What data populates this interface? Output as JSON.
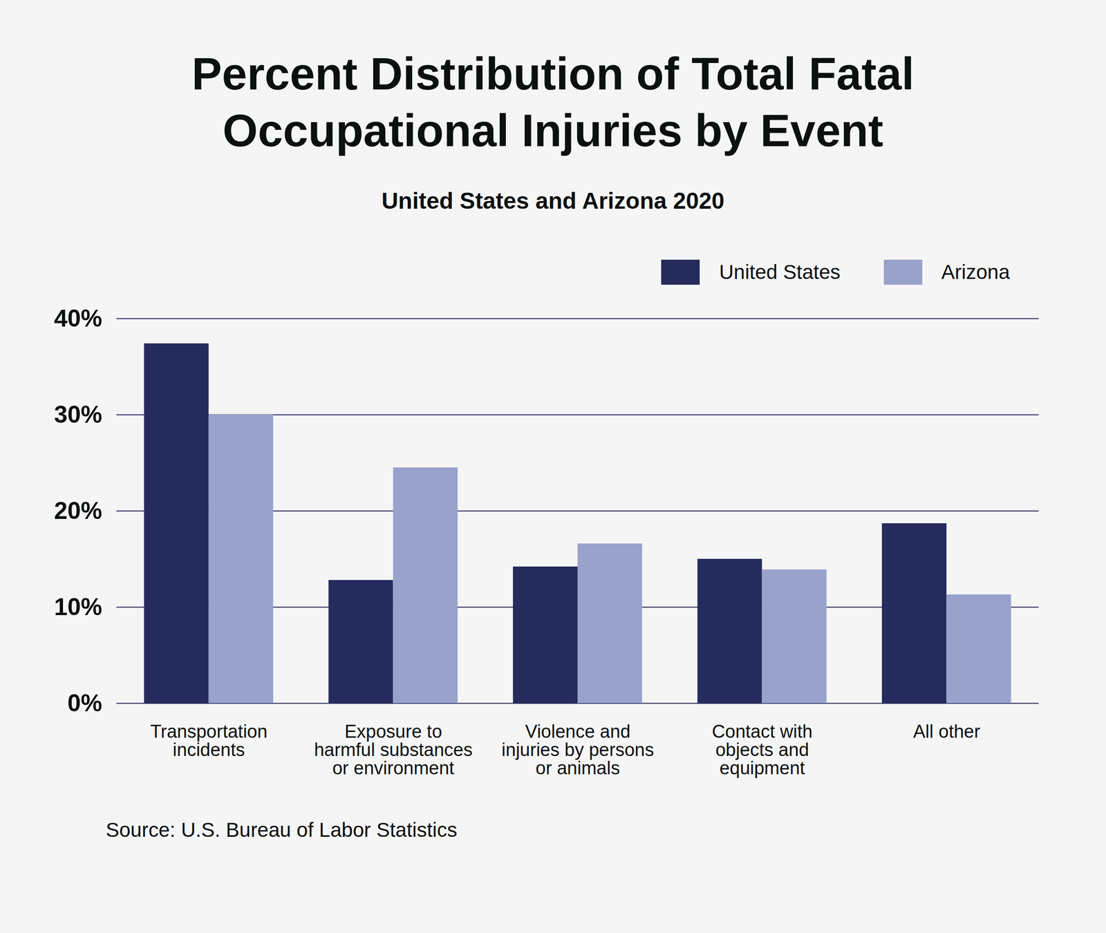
{
  "chart_data": {
    "type": "bar",
    "title": "Percent Distribution of Total Fatal Occupational Injuries by Event",
    "subtitle": "United States and Arizona 2020",
    "categories": [
      "Transportation incidents",
      "Exposure to harmful substances or environment",
      "Violence and injuries by persons or animals",
      "Contact with objects and equipment",
      "All other"
    ],
    "series": [
      {
        "name": "United States",
        "color": "#252b5c",
        "values": [
          37.4,
          12.8,
          14.2,
          15.0,
          18.7
        ]
      },
      {
        "name": "Arizona",
        "color": "#98a2cb",
        "values": [
          30.0,
          24.5,
          16.6,
          13.9,
          11.3
        ]
      }
    ],
    "ylim": [
      0,
      40
    ],
    "yticks": [
      {
        "value": 0,
        "label": "0%"
      },
      {
        "value": 10,
        "label": "10%"
      },
      {
        "value": 20,
        "label": "20%"
      },
      {
        "value": 30,
        "label": "30%"
      },
      {
        "value": 40,
        "label": "40%"
      }
    ],
    "grid": true,
    "legend": "top right",
    "source": "Source: U.S. Bureau of Labor Statistics"
  }
}
